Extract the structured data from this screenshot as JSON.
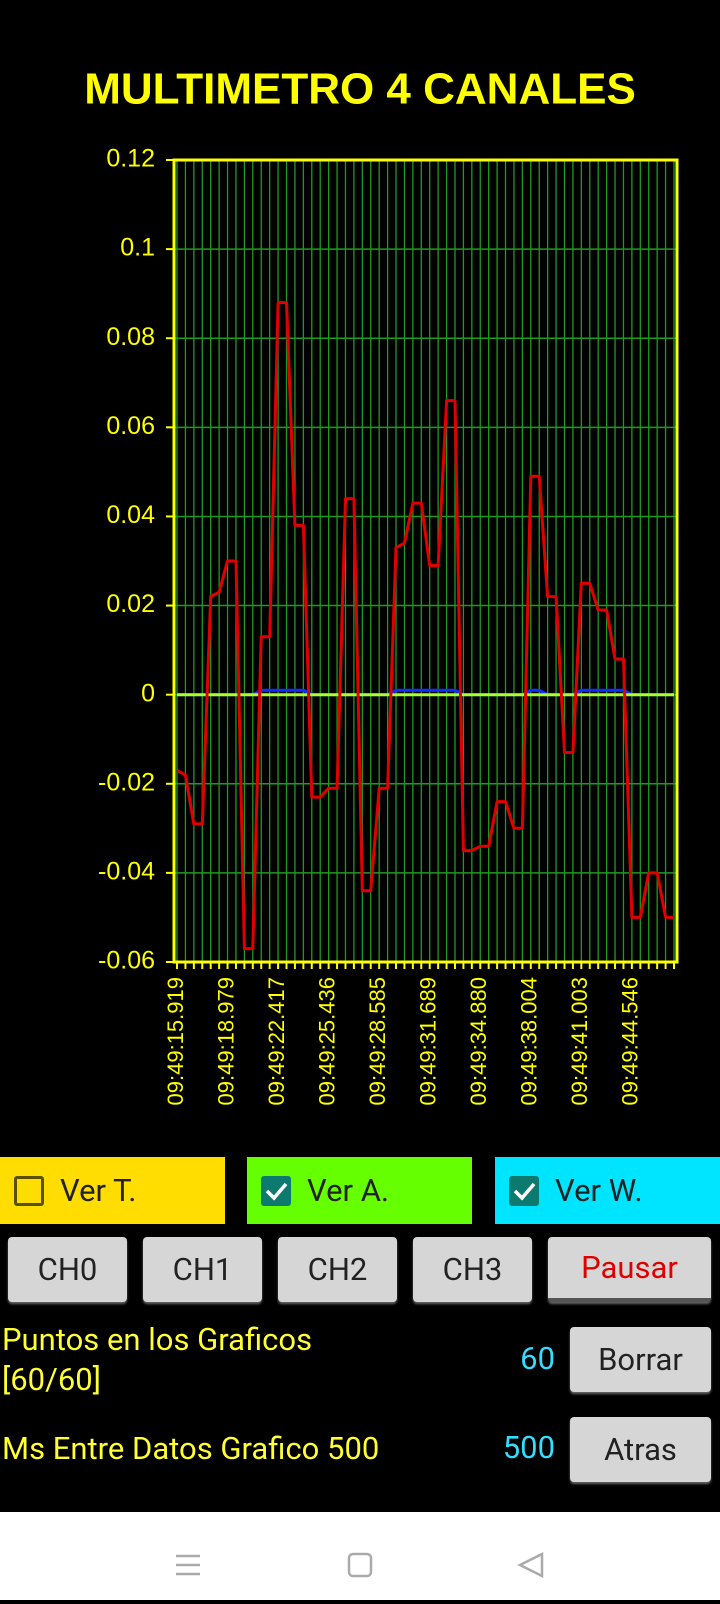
{
  "header": {
    "title": "MULTIMETRO 4 CANALES"
  },
  "chart_data": {
    "type": "line",
    "categories": [
      "09:49:15.919",
      null,
      null,
      null,
      null,
      null,
      "09:49:18.979",
      null,
      null,
      null,
      null,
      null,
      "09:49:22.417",
      null,
      null,
      null,
      null,
      null,
      "09:49:25.436",
      null,
      null,
      null,
      null,
      null,
      "09:49:28.585",
      null,
      null,
      null,
      null,
      null,
      "09:49:31.689",
      null,
      null,
      null,
      null,
      null,
      "09:49:34.880",
      null,
      null,
      null,
      null,
      null,
      "09:49:38.004",
      null,
      null,
      null,
      null,
      null,
      "09:49:41.003",
      null,
      null,
      null,
      null,
      null,
      "09:49:44.546",
      null,
      null,
      null,
      null,
      null
    ],
    "series": [
      {
        "color": "#e00000",
        "values": [
          -0.017,
          -0.018,
          -0.029,
          -0.029,
          0.022,
          0.023,
          0.03,
          0.03,
          -0.057,
          -0.057,
          0.013,
          0.013,
          0.088,
          0.088,
          0.038,
          0.038,
          -0.023,
          -0.023,
          -0.021,
          -0.021,
          0.044,
          0.044,
          -0.044,
          -0.044,
          -0.021,
          -0.021,
          0.033,
          0.034,
          0.043,
          0.043,
          0.029,
          0.029,
          0.066,
          0.066,
          -0.035,
          -0.035,
          -0.034,
          -0.034,
          -0.024,
          -0.024,
          -0.03,
          -0.03,
          0.049,
          0.049,
          0.022,
          0.022,
          -0.013,
          -0.013,
          0.025,
          0.025,
          0.019,
          0.019,
          0.008,
          0.008,
          -0.05,
          -0.05,
          -0.04,
          -0.04,
          -0.05,
          -0.05
        ]
      },
      {
        "color": "#1030ff",
        "values": [
          0,
          0,
          0,
          0,
          0,
          0,
          0,
          0,
          0,
          0,
          0.001,
          0.001,
          0.001,
          0.001,
          0.001,
          0.001,
          0,
          0,
          0,
          0,
          0,
          0,
          0,
          0,
          0,
          0,
          0.001,
          0.001,
          0.001,
          0.001,
          0.001,
          0.001,
          0.001,
          0.001,
          0,
          0,
          0,
          0,
          0,
          0,
          0,
          0,
          0.001,
          0.001,
          0,
          0,
          0,
          0,
          0.001,
          0.001,
          0.001,
          0.001,
          0.001,
          0.001,
          0,
          0,
          0,
          0,
          0,
          0
        ]
      },
      {
        "color": "#aaff33",
        "values": [
          0,
          0,
          0,
          0,
          0,
          0,
          0,
          0,
          0,
          0,
          0,
          0,
          0,
          0,
          0,
          0,
          0,
          0,
          0,
          0,
          0,
          0,
          0,
          0,
          0,
          0,
          0,
          0,
          0,
          0,
          0,
          0,
          0,
          0,
          0,
          0,
          0,
          0,
          0,
          0,
          0,
          0,
          0,
          0,
          0,
          0,
          0,
          0,
          0,
          0,
          0,
          0,
          0,
          0,
          0,
          0,
          0,
          0,
          0,
          0
        ]
      }
    ],
    "ylim": [
      -0.06,
      0.12
    ],
    "yticks": [
      -0.06,
      -0.04,
      -0.02,
      0,
      0.02,
      0.04,
      0.06,
      0.08,
      0.1,
      0.12
    ],
    "grid": true
  },
  "checkboxes": [
    {
      "label": "Ver T.",
      "checked": false,
      "color": "#ffdd00"
    },
    {
      "label": "Ver A.",
      "checked": true,
      "color": "#66ff00"
    },
    {
      "label": "Ver W.",
      "checked": true,
      "color": "#00e5ff"
    }
  ],
  "channel_buttons": [
    "CH0",
    "CH1",
    "CH2",
    "CH3"
  ],
  "pause_button": "Pausar",
  "points_setting": {
    "label": "Puntos en los Graficos [60/60]",
    "value": 60,
    "button": "Borrar"
  },
  "interval_setting": {
    "label": "Ms Entre Datos Grafico 500",
    "value": 500,
    "button": "Atras"
  }
}
